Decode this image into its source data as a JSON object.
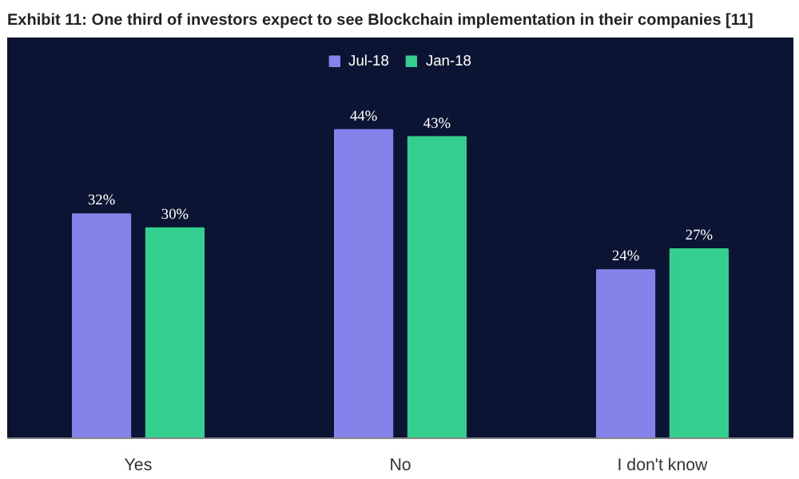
{
  "chart_data": {
    "type": "bar",
    "title": "Exhibit 11: One third of investors expect to see Blockchain implementation in their companies [11]",
    "categories": [
      "Yes",
      "No",
      "I don't know"
    ],
    "series": [
      {
        "name": "Jul-18",
        "color": "#8583ea",
        "values": [
          32,
          44,
          24
        ],
        "value_labels": [
          "32%",
          "44%",
          "24%"
        ]
      },
      {
        "name": "Jan-18",
        "color": "#34cf8e",
        "values": [
          30,
          43,
          27
        ],
        "value_labels": [
          "30%",
          "43%",
          "27%"
        ]
      }
    ],
    "legend": "top"
  }
}
